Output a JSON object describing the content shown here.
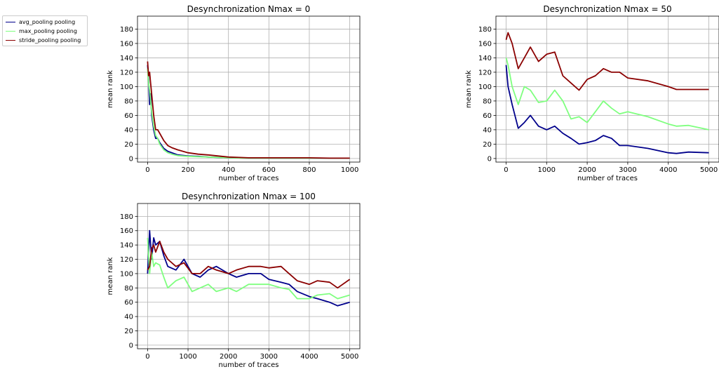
{
  "legend": {
    "items": [
      {
        "label": "avg_pooling pooling",
        "color": "#00008b"
      },
      {
        "label": "max_pooling pooling",
        "color": "#7fff7f"
      },
      {
        "label": "stride_pooling pooling",
        "color": "#8b0000"
      }
    ]
  },
  "chart_data": [
    {
      "type": "line",
      "title": "Desynchronization Nmax = 0",
      "xlabel": "number of traces",
      "ylabel": "mean rank",
      "xlim": [
        -50,
        1050
      ],
      "ylim": [
        -5,
        198
      ],
      "xticks": [
        0,
        200,
        400,
        600,
        800,
        1000
      ],
      "yticks": [
        0,
        20,
        40,
        60,
        80,
        100,
        120,
        140,
        160,
        180
      ],
      "grid": true,
      "series": [
        {
          "name": "avg_pooling pooling",
          "color": "#00008b",
          "x": [
            0,
            5,
            10,
            15,
            20,
            30,
            40,
            50,
            60,
            80,
            100,
            120,
            150,
            200,
            250,
            300,
            400,
            500,
            600,
            700,
            800,
            900,
            1000
          ],
          "y": [
            130,
            110,
            75,
            90,
            60,
            40,
            28,
            28,
            22,
            14,
            10,
            8,
            5,
            3.5,
            3,
            2,
            1,
            0.5,
            0.5,
            0.5,
            0.5,
            0.5,
            0.5
          ]
        },
        {
          "name": "max_pooling pooling",
          "color": "#7fff7f",
          "x": [
            0,
            5,
            10,
            15,
            20,
            30,
            40,
            50,
            60,
            80,
            100,
            120,
            150,
            200,
            250,
            300,
            400,
            500,
            600,
            700,
            800,
            900,
            1000
          ],
          "y": [
            125,
            105,
            95,
            80,
            65,
            45,
            32,
            28,
            20,
            12,
            8,
            6,
            4,
            3,
            2.5,
            2,
            1,
            0.5,
            0.5,
            0.5,
            0.5,
            0.5,
            0.5
          ]
        },
        {
          "name": "stride_pooling pooling",
          "color": "#8b0000",
          "x": [
            0,
            5,
            10,
            15,
            20,
            30,
            40,
            50,
            60,
            80,
            100,
            120,
            150,
            200,
            250,
            300,
            400,
            500,
            600,
            700,
            800,
            900,
            1000
          ],
          "y": [
            135,
            115,
            120,
            105,
            90,
            60,
            40,
            40,
            35,
            25,
            18,
            15,
            12,
            8,
            6,
            5,
            2,
            1,
            1,
            1,
            1,
            0.5,
            0.5
          ]
        }
      ]
    },
    {
      "type": "line",
      "title": "Desynchronization Nmax = 50",
      "xlabel": "number of traces",
      "ylabel": "mean rank",
      "xlim": [
        -250,
        5250
      ],
      "ylim": [
        -5,
        198
      ],
      "xticks": [
        0,
        1000,
        2000,
        3000,
        4000,
        5000
      ],
      "yticks": [
        0,
        20,
        40,
        60,
        80,
        100,
        120,
        140,
        160,
        180
      ],
      "grid": true,
      "series": [
        {
          "name": "avg_pooling pooling",
          "color": "#00008b",
          "x": [
            0,
            50,
            150,
            300,
            450,
            600,
            800,
            1000,
            1200,
            1400,
            1600,
            1800,
            2000,
            2200,
            2400,
            2600,
            2800,
            3000,
            3500,
            4000,
            4200,
            4500,
            5000
          ],
          "y": [
            130,
            100,
            75,
            42,
            50,
            60,
            45,
            40,
            45,
            35,
            28,
            20,
            22,
            25,
            32,
            28,
            18,
            18,
            14,
            8,
            7,
            9,
            8
          ]
        },
        {
          "name": "max_pooling pooling",
          "color": "#7fff7f",
          "x": [
            0,
            50,
            150,
            300,
            450,
            600,
            800,
            1000,
            1200,
            1400,
            1600,
            1800,
            2000,
            2200,
            2400,
            2600,
            2800,
            3000,
            3500,
            4000,
            4200,
            4500,
            5000
          ],
          "y": [
            140,
            130,
            100,
            75,
            100,
            95,
            78,
            80,
            95,
            80,
            55,
            58,
            50,
            65,
            80,
            70,
            62,
            65,
            58,
            48,
            45,
            46,
            40
          ]
        },
        {
          "name": "stride_pooling pooling",
          "color": "#8b0000",
          "x": [
            0,
            50,
            150,
            300,
            450,
            600,
            800,
            1000,
            1200,
            1400,
            1600,
            1800,
            2000,
            2200,
            2400,
            2600,
            2800,
            3000,
            3500,
            4000,
            4200,
            4500,
            5000
          ],
          "y": [
            165,
            175,
            160,
            125,
            140,
            155,
            135,
            145,
            148,
            115,
            105,
            95,
            110,
            115,
            125,
            120,
            120,
            112,
            108,
            100,
            96,
            96,
            96
          ]
        }
      ]
    },
    {
      "type": "line",
      "title": "Desynchronization Nmax = 100",
      "xlabel": "number of traces",
      "ylabel": "mean rank",
      "xlim": [
        -250,
        5250
      ],
      "ylim": [
        -5,
        198
      ],
      "xticks": [
        0,
        1000,
        2000,
        3000,
        4000,
        5000
      ],
      "yticks": [
        0,
        20,
        40,
        60,
        80,
        100,
        120,
        140,
        160,
        180
      ],
      "grid": true,
      "series": [
        {
          "name": "avg_pooling pooling",
          "color": "#00008b",
          "x": [
            0,
            50,
            100,
            150,
            200,
            300,
            400,
            500,
            700,
            900,
            1100,
            1300,
            1500,
            1700,
            2000,
            2200,
            2500,
            2800,
            3000,
            3300,
            3500,
            3700,
            4000,
            4200,
            4500,
            4700,
            5000
          ],
          "y": [
            100,
            160,
            120,
            150,
            140,
            145,
            125,
            110,
            105,
            120,
            100,
            95,
            105,
            110,
            100,
            95,
            100,
            100,
            92,
            88,
            85,
            75,
            68,
            65,
            60,
            55,
            60
          ]
        },
        {
          "name": "max_pooling pooling",
          "color": "#7fff7f",
          "x": [
            0,
            50,
            100,
            150,
            200,
            300,
            400,
            500,
            700,
            900,
            1100,
            1300,
            1500,
            1700,
            2000,
            2200,
            2500,
            2800,
            3000,
            3300,
            3500,
            3700,
            4000,
            4200,
            4500,
            4700,
            5000
          ],
          "y": [
            150,
            100,
            130,
            110,
            115,
            112,
            95,
            80,
            90,
            95,
            75,
            80,
            85,
            75,
            80,
            75,
            85,
            85,
            85,
            80,
            78,
            65,
            65,
            70,
            72,
            65,
            70
          ]
        },
        {
          "name": "stride_pooling pooling",
          "color": "#8b0000",
          "x": [
            0,
            50,
            100,
            150,
            200,
            300,
            400,
            500,
            700,
            900,
            1100,
            1300,
            1500,
            1700,
            2000,
            2200,
            2500,
            2800,
            3000,
            3300,
            3500,
            3700,
            4000,
            4200,
            4500,
            4700,
            5000
          ],
          "y": [
            105,
            110,
            135,
            140,
            130,
            145,
            130,
            120,
            110,
            115,
            100,
            100,
            110,
            105,
            100,
            105,
            110,
            110,
            108,
            110,
            100,
            90,
            85,
            90,
            88,
            80,
            92
          ]
        }
      ]
    }
  ]
}
